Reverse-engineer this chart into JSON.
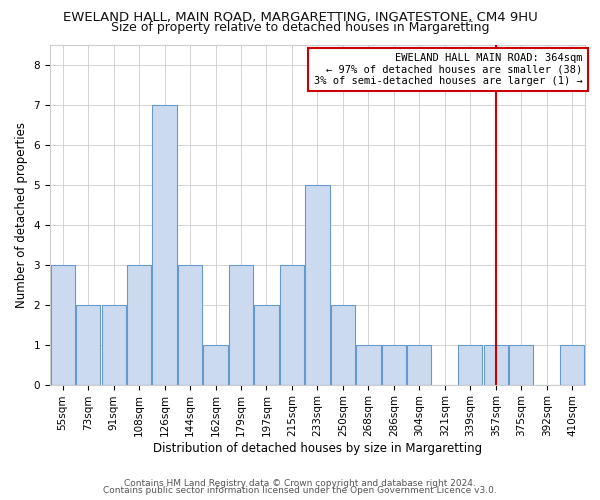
{
  "title_line1": "EWELAND HALL, MAIN ROAD, MARGARETTING, INGATESTONE, CM4 9HU",
  "title_line2": "Size of property relative to detached houses in Margaretting",
  "xlabel": "Distribution of detached houses by size in Margaretting",
  "ylabel": "Number of detached properties",
  "categories": [
    "55sqm",
    "73sqm",
    "91sqm",
    "108sqm",
    "126sqm",
    "144sqm",
    "162sqm",
    "179sqm",
    "197sqm",
    "215sqm",
    "233sqm",
    "250sqm",
    "268sqm",
    "286sqm",
    "304sqm",
    "321sqm",
    "339sqm",
    "357sqm",
    "375sqm",
    "392sqm",
    "410sqm"
  ],
  "values": [
    3,
    2,
    2,
    3,
    7,
    3,
    1,
    3,
    2,
    3,
    5,
    2,
    1,
    1,
    1,
    0,
    1,
    1,
    1,
    0,
    1
  ],
  "bar_color": "#ccdaf0",
  "bar_edge_color": "#6699cc",
  "vline_x_index": 17,
  "vline_color": "#cc0000",
  "annotation_text": "EWELAND HALL MAIN ROAD: 364sqm\n← 97% of detached houses are smaller (38)\n3% of semi-detached houses are larger (1) →",
  "annotation_box_color": "#ffffff",
  "annotation_box_edge": "#cc0000",
  "ylim": [
    0,
    8.5
  ],
  "yticks": [
    0,
    1,
    2,
    3,
    4,
    5,
    6,
    7,
    8
  ],
  "footer_line1": "Contains HM Land Registry data © Crown copyright and database right 2024.",
  "footer_line2": "Contains public sector information licensed under the Open Government Licence v3.0.",
  "background_color": "#ffffff",
  "grid_color": "#cccccc",
  "title_fontsize": 9.5,
  "subtitle_fontsize": 9,
  "axis_label_fontsize": 8.5,
  "tick_fontsize": 7.5,
  "footer_fontsize": 6.5,
  "annotation_fontsize": 7.5
}
